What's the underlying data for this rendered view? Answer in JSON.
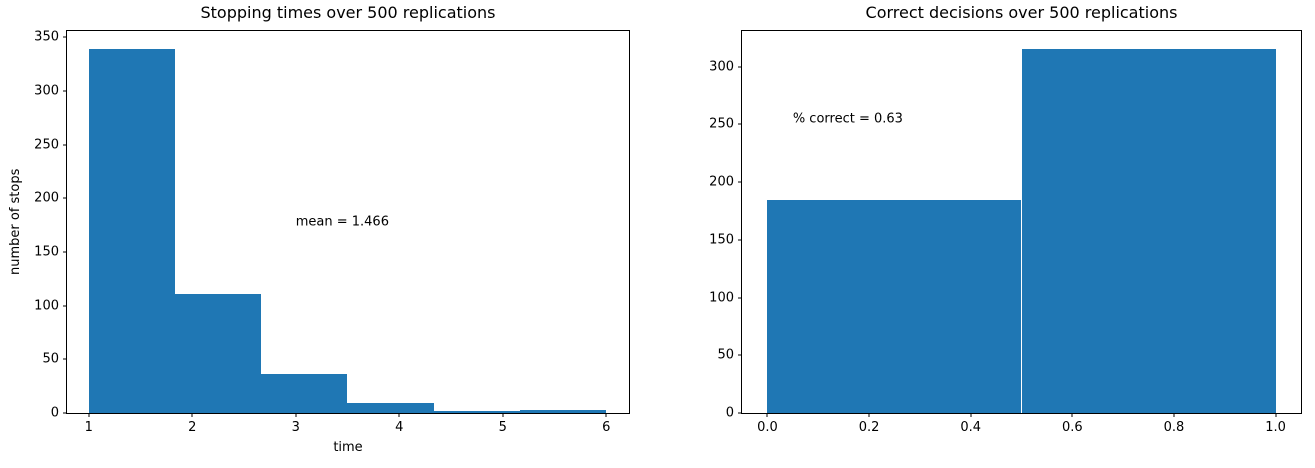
{
  "figure": {
    "background": "#ffffff"
  },
  "colors": {
    "bar": "#1f77b4",
    "text": "#000000",
    "spine": "#000000"
  },
  "chart_data": [
    {
      "type": "bar",
      "subtype": "histogram",
      "title": "Stopping times over 500 replications",
      "xlabel": "time",
      "ylabel": "number of stops",
      "bin_edges": [
        1,
        1.8333,
        2.6667,
        3.5,
        4.3333,
        5.1667,
        6
      ],
      "values": [
        339,
        111,
        36,
        9,
        2,
        3
      ],
      "xlim": [
        0.79,
        6.22
      ],
      "ylim": [
        0,
        356
      ],
      "grid": false,
      "legend": null,
      "xticks": [
        {
          "value": 1,
          "label": "1"
        },
        {
          "value": 2,
          "label": "2"
        },
        {
          "value": 3,
          "label": "3"
        },
        {
          "value": 4,
          "label": "4"
        },
        {
          "value": 5,
          "label": "5"
        },
        {
          "value": 6,
          "label": "6"
        }
      ],
      "yticks": [
        {
          "value": 0,
          "label": "0"
        },
        {
          "value": 50,
          "label": "50"
        },
        {
          "value": 100,
          "label": "100"
        },
        {
          "value": 150,
          "label": "150"
        },
        {
          "value": 200,
          "label": "200"
        },
        {
          "value": 250,
          "label": "250"
        },
        {
          "value": 300,
          "label": "300"
        },
        {
          "value": 350,
          "label": "350"
        }
      ],
      "annotations": [
        {
          "x": 3.0,
          "y": 178,
          "text": "mean = 1.466"
        }
      ]
    },
    {
      "type": "bar",
      "subtype": "histogram",
      "title": "Correct decisions over 500 replications",
      "xlabel": "",
      "ylabel": "",
      "bin_edges": [
        0,
        0.5,
        1.0
      ],
      "values": [
        185,
        315
      ],
      "xlim": [
        -0.05,
        1.05
      ],
      "ylim": [
        0,
        331
      ],
      "grid": false,
      "legend": null,
      "xticks": [
        {
          "value": 0.0,
          "label": "0.0"
        },
        {
          "value": 0.2,
          "label": "0.2"
        },
        {
          "value": 0.4,
          "label": "0.4"
        },
        {
          "value": 0.6,
          "label": "0.6"
        },
        {
          "value": 0.8,
          "label": "0.8"
        },
        {
          "value": 1.0,
          "label": "1.0"
        }
      ],
      "yticks": [
        {
          "value": 0,
          "label": "0"
        },
        {
          "value": 50,
          "label": "50"
        },
        {
          "value": 100,
          "label": "100"
        },
        {
          "value": 150,
          "label": "150"
        },
        {
          "value": 200,
          "label": "200"
        },
        {
          "value": 250,
          "label": "250"
        },
        {
          "value": 300,
          "label": "300"
        }
      ],
      "annotations": [
        {
          "x": 0.05,
          "y": 255,
          "text": "% correct = 0.63"
        }
      ]
    }
  ]
}
